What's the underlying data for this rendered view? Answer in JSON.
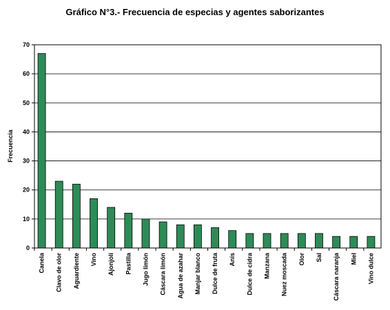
{
  "chart_data": {
    "type": "bar",
    "title": "Gráfico N°3.- Frecuencia de especias y agentes saborizantes",
    "xlabel": "",
    "ylabel": "Frecuencia",
    "ylim": [
      0,
      70
    ],
    "yticks": [
      "0",
      "10",
      "20",
      "30",
      "40",
      "50",
      "60",
      "70"
    ],
    "grid": true,
    "legend": "none",
    "bar_color": "#2e8b57",
    "categories": [
      "Canela",
      "Clavo de olor",
      "Aguardiente",
      "Vino",
      "Ajonjolí",
      "Pastilla",
      "Jugo limón",
      "Cáscara limón",
      "Agua de azahar",
      "Manjar blanco",
      "Dulce de fruta",
      "Anís",
      "Dulce de cidra",
      "Manzana",
      "Nuez moscada",
      "Olor",
      "Sal",
      "Cáscara naranja",
      "Miel",
      "Vino dulce"
    ],
    "values": [
      67,
      23,
      22,
      17,
      14,
      12,
      10,
      9,
      8,
      8,
      7,
      6,
      5,
      5,
      5,
      5,
      5,
      4,
      4,
      4
    ]
  }
}
